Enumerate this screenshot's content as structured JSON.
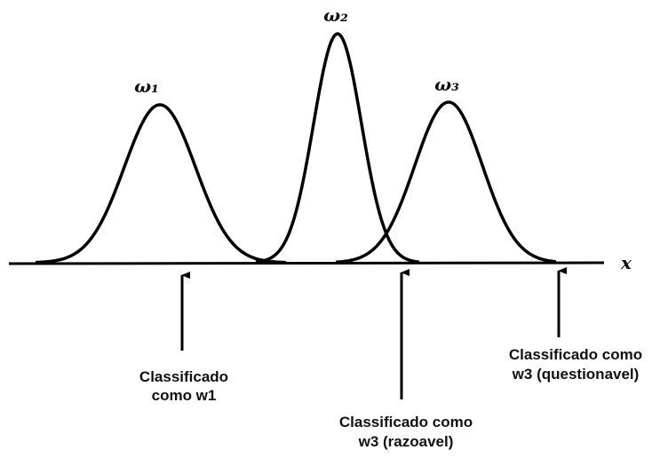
{
  "curves": [
    {
      "label": "ω₁"
    },
    {
      "label": "ω₂"
    },
    {
      "label": "ω₃"
    }
  ],
  "axis_label": "x",
  "annotations": [
    {
      "lines": [
        "Classificado",
        "como w1"
      ]
    },
    {
      "lines": [
        "Classificado como",
        "w3 (razoavel)"
      ]
    },
    {
      "lines": [
        "Classificado como",
        "w3 (questionavel)"
      ]
    }
  ]
}
